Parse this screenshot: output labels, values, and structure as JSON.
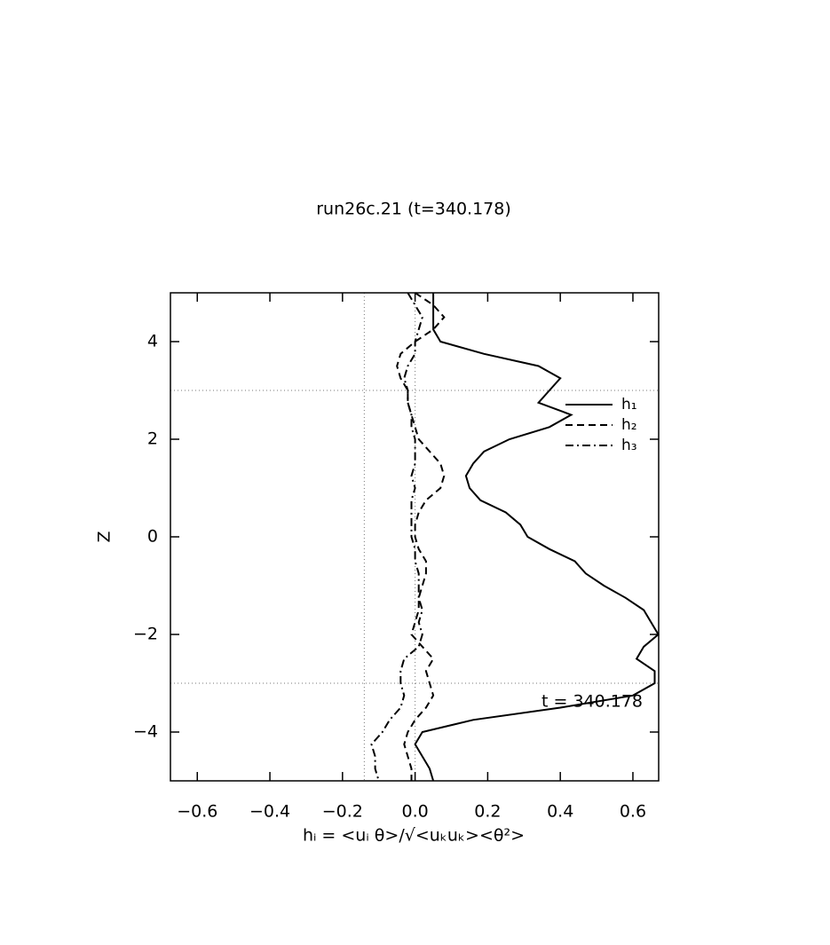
{
  "chart_data": {
    "type": "line",
    "title": "run26c.21 (t=340.178)",
    "xlabel": "hᵢ = <uᵢ θ>/√<uₖuₖ><θ²>",
    "ylabel": "Z",
    "annotation": "t = 340.178",
    "y": [
      5,
      4.75,
      4.5,
      4.25,
      4,
      3.75,
      3.5,
      3.25,
      3,
      2.75,
      2.5,
      2.25,
      2,
      1.75,
      1.5,
      1.25,
      1,
      0.75,
      0.5,
      0.25,
      0,
      -0.25,
      -0.5,
      -0.75,
      -1,
      -1.25,
      -1.5,
      -1.75,
      -2,
      -2.25,
      -2.5,
      -2.75,
      -3,
      -3.25,
      -3.5,
      -3.75,
      -4,
      -4.25,
      -4.5,
      -4.75,
      -5
    ],
    "series": [
      {
        "name": "h₁",
        "color": "#000000",
        "dash": "solid",
        "values": [
          0.05,
          0.05,
          0.05,
          0.05,
          0.07,
          0.19,
          0.34,
          0.4,
          0.37,
          0.34,
          0.43,
          0.37,
          0.26,
          0.19,
          0.16,
          0.14,
          0.15,
          0.18,
          0.25,
          0.29,
          0.31,
          0.37,
          0.44,
          0.47,
          0.52,
          0.58,
          0.63,
          0.65,
          0.67,
          0.63,
          0.61,
          0.66,
          0.66,
          0.6,
          0.4,
          0.16,
          0.02,
          0.0,
          0.02,
          0.04,
          0.05
        ]
      },
      {
        "name": "h₂",
        "color": "#000000",
        "dash": "dashed",
        "values": [
          0.0,
          0.05,
          0.08,
          0.05,
          0.0,
          -0.04,
          -0.05,
          -0.04,
          -0.02,
          -0.02,
          -0.01,
          0.0,
          0.01,
          0.04,
          0.07,
          0.08,
          0.07,
          0.03,
          0.01,
          0.0,
          0.0,
          0.01,
          0.03,
          0.03,
          0.02,
          0.01,
          0.01,
          0.0,
          -0.01,
          0.02,
          0.05,
          0.03,
          0.04,
          0.05,
          0.03,
          0.0,
          -0.02,
          -0.03,
          -0.02,
          -0.01,
          -0.01
        ]
      },
      {
        "name": "h₃",
        "color": "#000000",
        "dash": "dashdot",
        "values": [
          -0.02,
          0.0,
          0.02,
          0.01,
          0.0,
          0.0,
          -0.02,
          -0.03,
          -0.02,
          -0.02,
          -0.01,
          -0.01,
          0.0,
          0.0,
          0.0,
          -0.01,
          0.0,
          -0.01,
          -0.01,
          -0.01,
          -0.01,
          0.0,
          0.0,
          0.01,
          0.01,
          0.01,
          0.02,
          0.01,
          0.02,
          0.01,
          -0.03,
          -0.04,
          -0.04,
          -0.03,
          -0.04,
          -0.07,
          -0.09,
          -0.12,
          -0.11,
          -0.11,
          -0.1
        ]
      }
    ],
    "xlim": [
      -0.674,
      0.671
    ],
    "ylim": [
      -5,
      5
    ],
    "xticks": [
      {
        "value": -0.6,
        "label": "−0.6"
      },
      {
        "value": -0.4,
        "label": "−0.4"
      },
      {
        "value": -0.2,
        "label": "−0.2"
      },
      {
        "value": 0,
        "label": "0.0"
      },
      0.2,
      0.4,
      0.6
    ],
    "yticks": [
      {
        "value": -4,
        "label": "−4"
      },
      {
        "value": -2,
        "label": "−2"
      },
      0,
      2,
      4
    ],
    "vlines": [
      -0.14,
      0
    ],
    "hlines": [
      3,
      -3
    ],
    "grid": false,
    "legend": "upper right"
  }
}
